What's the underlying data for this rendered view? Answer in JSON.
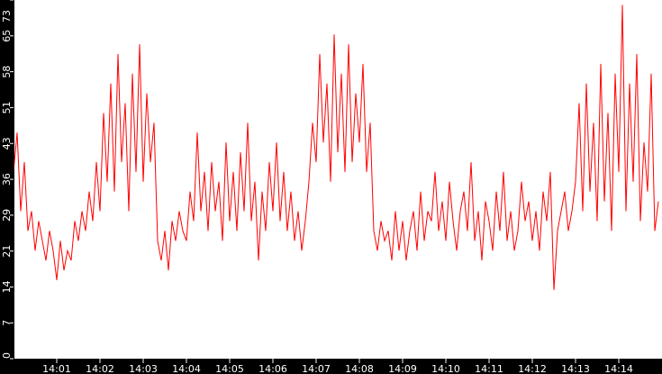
{
  "chart_data": {
    "type": "line",
    "title": "",
    "xlabel": "",
    "ylabel": "",
    "ylim": [
      0,
      73
    ],
    "xlim": [
      "14:00:00",
      "14:15:00"
    ],
    "sample_interval_seconds": 5,
    "y_ticks": [
      "0",
      "7",
      "14",
      "21",
      "29",
      "36",
      "43",
      "51",
      "58",
      "65",
      "73"
    ],
    "x_ticks": [
      "14:01",
      "14:02",
      "14:03",
      "14:04",
      "14:05",
      "14:06",
      "14:07",
      "14:08",
      "14:09",
      "14:10",
      "14:11",
      "14:12",
      "14:13",
      "14:14"
    ],
    "grid": false,
    "colors": {
      "series": "#ff0000",
      "plot_background": "#ffffff",
      "frame": "#000000",
      "text": "#ffffff"
    },
    "series": [
      {
        "values": [
          38,
          46,
          30,
          40,
          26,
          30,
          22,
          28,
          24,
          20,
          26,
          22,
          16,
          24,
          18,
          22,
          20,
          28,
          24,
          30,
          26,
          34,
          28,
          40,
          30,
          50,
          36,
          56,
          34,
          62,
          40,
          52,
          30,
          58,
          38,
          64,
          36,
          54,
          40,
          48,
          24,
          20,
          26,
          18,
          28,
          24,
          30,
          26,
          24,
          34,
          28,
          46,
          30,
          38,
          26,
          40,
          30,
          36,
          24,
          44,
          28,
          38,
          26,
          42,
          30,
          48,
          28,
          36,
          20,
          34,
          26,
          40,
          30,
          44,
          28,
          38,
          26,
          34,
          24,
          30,
          22,
          28,
          36,
          48,
          40,
          62,
          44,
          56,
          36,
          66,
          42,
          58,
          38,
          64,
          40,
          54,
          44,
          60,
          38,
          48,
          26,
          22,
          28,
          24,
          26,
          20,
          30,
          22,
          28,
          20,
          26,
          30,
          22,
          34,
          24,
          30,
          28,
          38,
          26,
          32,
          24,
          36,
          28,
          22,
          30,
          34,
          26,
          40,
          24,
          30,
          20,
          32,
          28,
          22,
          34,
          26,
          38,
          24,
          30,
          22,
          26,
          36,
          28,
          32,
          24,
          30,
          22,
          34,
          28,
          38,
          14,
          26,
          30,
          34,
          26,
          30,
          36,
          52,
          30,
          56,
          34,
          48,
          28,
          60,
          32,
          50,
          26,
          58,
          38,
          72,
          30,
          56,
          36,
          62,
          28,
          44,
          34,
          58,
          26,
          32
        ]
      }
    ]
  }
}
